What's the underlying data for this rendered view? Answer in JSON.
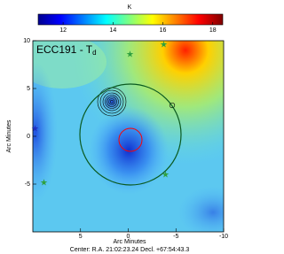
{
  "chart_data": {
    "type": "heatmap",
    "title": "ECC191 - T",
    "title_subscript": "d",
    "colorbar": {
      "label": "K",
      "lim": [
        11,
        18.4
      ],
      "ticks": [
        12,
        14,
        16,
        18
      ]
    },
    "xlabel": "Arc Minutes",
    "ylabel": "Arc Minutes",
    "xlim": [
      10,
      -10
    ],
    "xticks": [
      5,
      0,
      -5,
      -10
    ],
    "ylim": [
      -10,
      10
    ],
    "yticks": [
      10,
      5,
      0,
      -5
    ],
    "footer": "Center: R.A. 21:02:23.24  Decl. +67:54:43.3"
  }
}
